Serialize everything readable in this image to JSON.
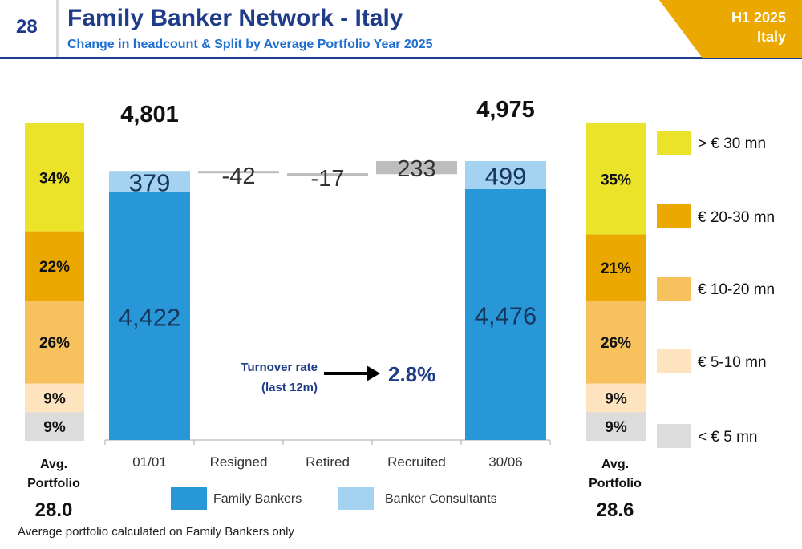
{
  "header": {
    "page_number": "28",
    "title": "Family Banker Network - Italy",
    "subtitle": "Change in headcount & Split by Average Portfolio Year 2025",
    "badge_line1": "H1 2025",
    "badge_line2": "Italy"
  },
  "footnote": "Average portfolio calculated on Family Bankers only",
  "colors": {
    "family_bankers": "#2897d8",
    "banker_consultants": "#a3d3f0",
    "change_bar": "#bdbdbd",
    "gt30": "#ebe22a",
    "b20_30": "#eba800",
    "b10_20": "#f7c25e",
    "b5_10": "#fde4bf",
    "lt5": "#dcdcdc",
    "title": "#1f3c88",
    "subtitle": "#1e6fd0",
    "badge": "#eba800"
  },
  "legend_bottom": [
    "Family Bankers",
    "Banker Consultants"
  ],
  "legend_right": [
    "> € 30 mn",
    "€ 20-30 mn",
    "€ 10-20 mn",
    "€ 5-10 mn",
    "< € 5 mn"
  ],
  "turnover": {
    "label_line1": "Turnover rate",
    "label_line2": "(last 12m)",
    "value": "2.8%"
  },
  "chart_data": [
    {
      "type": "bar",
      "subtype": "waterfall",
      "categories": [
        "01/01",
        "Resigned",
        "Retired",
        "Recruited",
        "30/06"
      ],
      "series": [
        {
          "name": "Family Bankers",
          "values": [
            4422,
            null,
            null,
            null,
            4476
          ]
        },
        {
          "name": "Banker Consultants",
          "values": [
            379,
            null,
            null,
            null,
            499
          ]
        }
      ],
      "changes": [
        null,
        -42,
        -17,
        233,
        null
      ],
      "value_labels": [
        "4,422",
        "379",
        "-42",
        "-17",
        "233",
        "4,476",
        "499"
      ],
      "totals": [
        4801,
        null,
        null,
        null,
        4975
      ],
      "total_labels": [
        "4,801",
        "",
        "",
        "",
        "4,975"
      ]
    },
    {
      "type": "bar",
      "subtype": "stacked-100",
      "categories": [
        "01/01",
        "30/06"
      ],
      "series": [
        {
          "name": "> € 30 mn",
          "values": [
            34,
            35
          ]
        },
        {
          "name": "€ 20-30 mn",
          "values": [
            22,
            21
          ]
        },
        {
          "name": "€ 10-20 mn",
          "values": [
            26,
            26
          ]
        },
        {
          "name": "€ 5-10 mn",
          "values": [
            9,
            9
          ]
        },
        {
          "name": "< € 5 mn",
          "values": [
            9,
            9
          ]
        }
      ],
      "unit": "%",
      "avg_portfolio_label_line1": "Avg.",
      "avg_portfolio_label_line2": "Portfolio",
      "avg_portfolio": [
        "28.0",
        "28.6"
      ]
    }
  ]
}
